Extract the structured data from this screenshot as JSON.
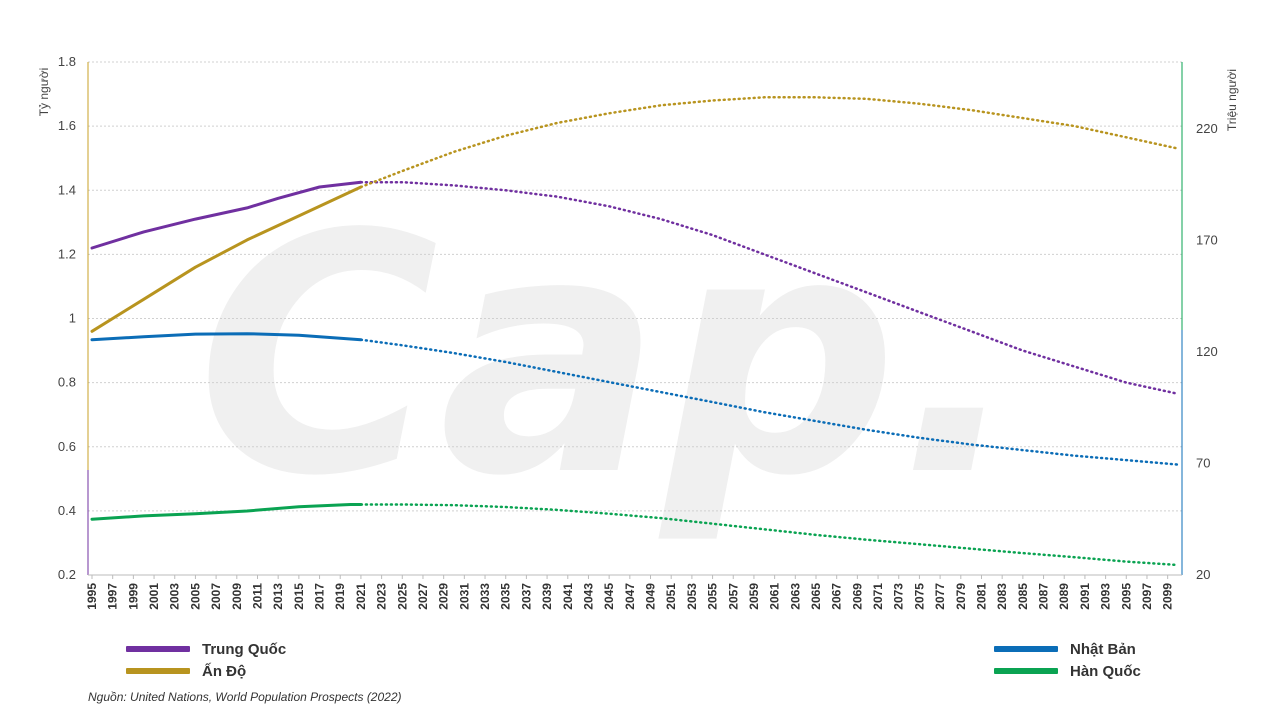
{
  "chart_data": {
    "type": "line",
    "source": "Nguồn: United Nations, World Population Prospects (2022)",
    "y_left": {
      "label": "Tỷ người",
      "ylim": [
        0.2,
        1.8
      ],
      "ticks": [
        "0.2",
        "0.4",
        "0.6",
        "0.8",
        "1",
        "1.2",
        "1.4",
        "1.6",
        "1.8"
      ]
    },
    "y_right": {
      "label": "Triệu người",
      "ylim": [
        20,
        250
      ],
      "ticks": [
        "20",
        "70",
        "120",
        "170",
        "220"
      ]
    },
    "x": {
      "range": [
        1995,
        2100
      ],
      "tick_start": 1995,
      "tick_end": 2099,
      "tick_step": 2
    },
    "grid": true,
    "projection_start": 2021,
    "series": [
      {
        "name": "Trung Quốc",
        "axis": "left",
        "color": "#7030a0",
        "points": [
          [
            1995,
            1.22
          ],
          [
            2000,
            1.27
          ],
          [
            2005,
            1.31
          ],
          [
            2010,
            1.345
          ],
          [
            2013,
            1.375
          ],
          [
            2017,
            1.41
          ],
          [
            2021,
            1.425
          ],
          [
            2025,
            1.425
          ],
          [
            2030,
            1.415
          ],
          [
            2035,
            1.4
          ],
          [
            2040,
            1.38
          ],
          [
            2045,
            1.35
          ],
          [
            2050,
            1.31
          ],
          [
            2055,
            1.26
          ],
          [
            2060,
            1.2
          ],
          [
            2065,
            1.14
          ],
          [
            2070,
            1.08
          ],
          [
            2075,
            1.02
          ],
          [
            2080,
            0.96
          ],
          [
            2085,
            0.9
          ],
          [
            2090,
            0.85
          ],
          [
            2095,
            0.8
          ],
          [
            2100,
            0.765
          ]
        ]
      },
      {
        "name": "Ấn Độ",
        "axis": "left",
        "color": "#b8941f",
        "points": [
          [
            1995,
            0.96
          ],
          [
            2000,
            1.06
          ],
          [
            2005,
            1.16
          ],
          [
            2010,
            1.245
          ],
          [
            2015,
            1.32
          ],
          [
            2021,
            1.41
          ],
          [
            2025,
            1.46
          ],
          [
            2030,
            1.52
          ],
          [
            2035,
            1.57
          ],
          [
            2040,
            1.61
          ],
          [
            2045,
            1.64
          ],
          [
            2050,
            1.665
          ],
          [
            2055,
            1.68
          ],
          [
            2060,
            1.69
          ],
          [
            2065,
            1.69
          ],
          [
            2070,
            1.685
          ],
          [
            2075,
            1.67
          ],
          [
            2080,
            1.65
          ],
          [
            2085,
            1.625
          ],
          [
            2090,
            1.6
          ],
          [
            2095,
            1.565
          ],
          [
            2100,
            1.53
          ]
        ]
      },
      {
        "name": "Nhật Bản",
        "axis": "right",
        "color": "#0b6db7",
        "points": [
          [
            1995,
            125.5
          ],
          [
            2000,
            126.8
          ],
          [
            2005,
            128
          ],
          [
            2010,
            128.2
          ],
          [
            2015,
            127.5
          ],
          [
            2021,
            125.5
          ],
          [
            2025,
            123
          ],
          [
            2030,
            119.5
          ],
          [
            2035,
            115.5
          ],
          [
            2040,
            111
          ],
          [
            2045,
            106.5
          ],
          [
            2050,
            102
          ],
          [
            2055,
            97.5
          ],
          [
            2060,
            93
          ],
          [
            2065,
            89
          ],
          [
            2070,
            85
          ],
          [
            2075,
            81.5
          ],
          [
            2080,
            78.5
          ],
          [
            2085,
            76
          ],
          [
            2090,
            73.5
          ],
          [
            2095,
            71.5
          ],
          [
            2100,
            69.5
          ]
        ]
      },
      {
        "name": "Hàn Quốc",
        "axis": "right",
        "color": "#0aa352",
        "points": [
          [
            1995,
            45
          ],
          [
            2000,
            46.5
          ],
          [
            2005,
            47.5
          ],
          [
            2010,
            48.7
          ],
          [
            2015,
            50.6
          ],
          [
            2020,
            51.6
          ],
          [
            2021,
            51.6
          ],
          [
            2025,
            51.6
          ],
          [
            2030,
            51.3
          ],
          [
            2035,
            50.5
          ],
          [
            2040,
            49.2
          ],
          [
            2045,
            47.5
          ],
          [
            2050,
            45.5
          ],
          [
            2055,
            43
          ],
          [
            2060,
            40.5
          ],
          [
            2065,
            38
          ],
          [
            2070,
            35.8
          ],
          [
            2075,
            33.8
          ],
          [
            2080,
            31.8
          ],
          [
            2085,
            29.8
          ],
          [
            2090,
            28
          ],
          [
            2095,
            26
          ],
          [
            2100,
            24.5
          ]
        ]
      }
    ],
    "legend": {
      "left": [
        {
          "label": "Trung Quốc",
          "color": "#7030a0"
        },
        {
          "label": "Ấn Độ",
          "color": "#b8941f"
        }
      ],
      "right": [
        {
          "label": "Nhật Bản",
          "color": "#0b6db7"
        },
        {
          "label": "Hàn Quốc",
          "color": "#0aa352"
        }
      ]
    },
    "watermark": "Cap."
  }
}
